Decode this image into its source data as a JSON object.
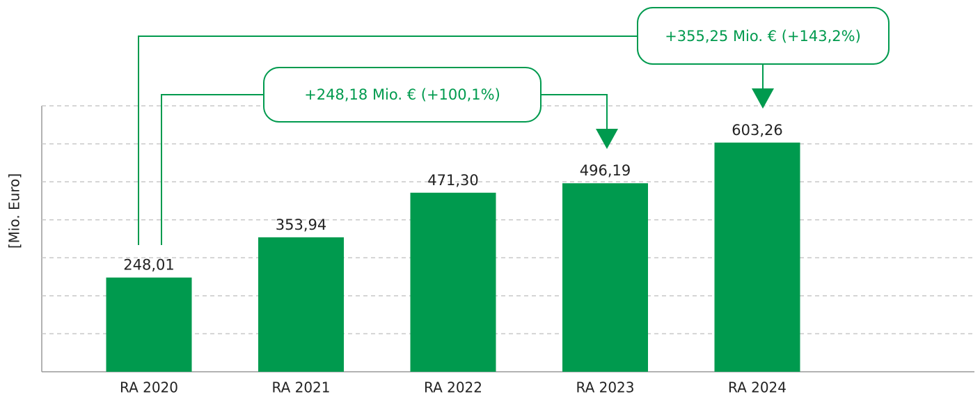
{
  "chart_data": {
    "type": "bar",
    "y_label": "[Mio.  Euro]",
    "categories": [
      "RA 2020",
      "RA 2021",
      "RA 2022",
      "RA 2023",
      "RA 2024"
    ],
    "values": [
      248.01,
      353.94,
      471.3,
      496.19,
      603.26
    ],
    "value_labels": [
      "248,01",
      "353,94",
      "471,30",
      "496,19",
      "603,26"
    ],
    "color": "#009a4e",
    "ylim": [
      0,
      700
    ],
    "yticks": [
      0,
      100,
      200,
      300,
      400,
      500,
      600,
      700
    ],
    "grid": true,
    "annotations": [
      "+248,18 Mio. € (+100,1%)",
      "+355,25 Mio. € (+143,2%)"
    ]
  }
}
